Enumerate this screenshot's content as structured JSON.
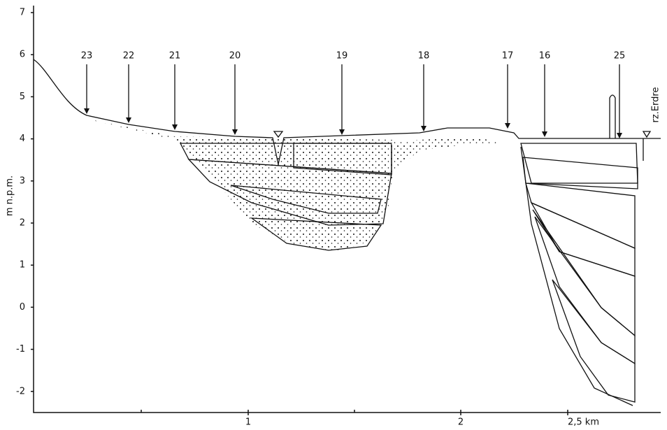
{
  "y_axis": {
    "label": "m n.p.m.",
    "ticks": [
      "7",
      "6",
      "5",
      "4",
      "3",
      "2",
      "1",
      "0",
      "-1",
      "-2"
    ]
  },
  "x_axis": {
    "ticks": [
      "1",
      "2",
      "2,5 km"
    ]
  },
  "boreholes": [
    "23",
    "22",
    "21",
    "20",
    "19",
    "18",
    "17",
    "16",
    "25"
  ],
  "river": "rz.Erdre"
}
